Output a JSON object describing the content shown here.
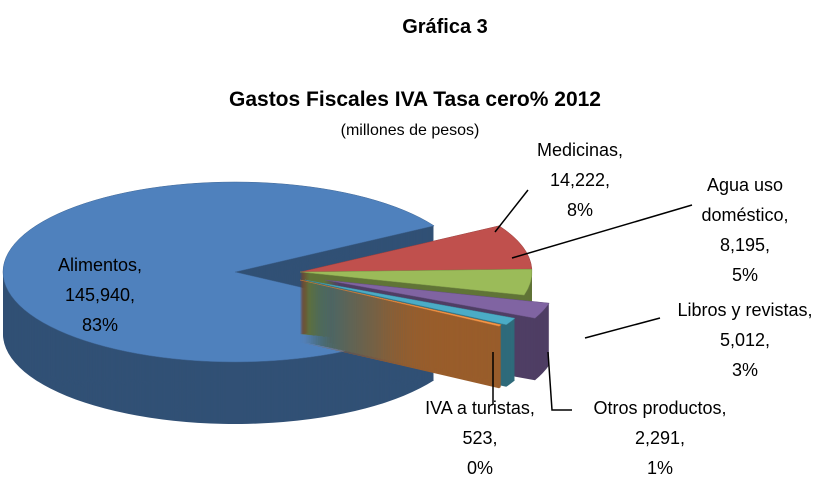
{
  "chart_data": {
    "type": "pie3d",
    "heading": "Gráfica 3",
    "title": "Gastos Fiscales IVA Tasa cero% 2012",
    "subtitle": "(millones de pesos)",
    "categories": [
      "Alimentos,",
      "Medicinas,",
      "Agua uso doméstico,",
      "Libros y revistas,",
      "Otros productos,",
      "IVA a turistas,"
    ],
    "values": [
      145940,
      14222,
      8195,
      5012,
      2291,
      523
    ],
    "value_labels": [
      "145,940,",
      "14,222,",
      "8,195,",
      "5,012,",
      "2,291,",
      "523,"
    ],
    "percent_labels": [
      "83%",
      "8%",
      "5%",
      "3%",
      "1%",
      "0%"
    ],
    "colors": [
      "#4f81bd",
      "#c0504d",
      "#9bbb59",
      "#8064a2",
      "#4bacc6",
      "#f79646"
    ]
  }
}
